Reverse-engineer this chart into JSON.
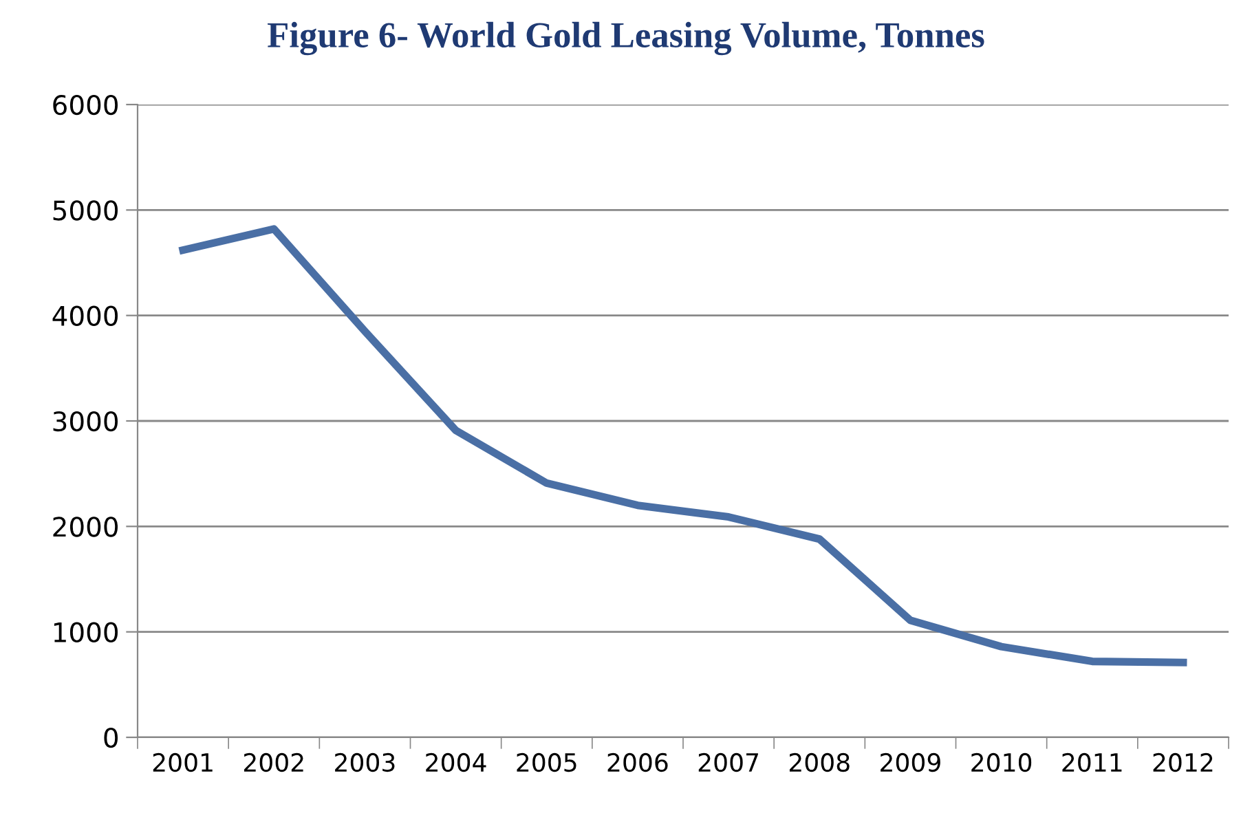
{
  "chart_data": {
    "type": "line",
    "title": "Figure 6- World Gold Leasing Volume, Tonnes",
    "categories": [
      "2001",
      "2002",
      "2003",
      "2004",
      "2005",
      "2006",
      "2007",
      "2008",
      "2009",
      "2010",
      "2011",
      "2012"
    ],
    "series": [
      {
        "color": "#4a6fa5",
        "values": [
          4620,
          4820,
          3850,
          2910,
          2410,
          2200,
          2090,
          1880,
          1110,
          860,
          720,
          710
        ]
      }
    ],
    "ylim": [
      0,
      6000
    ],
    "yticks": [
      0,
      1000,
      2000,
      3000,
      4000,
      5000,
      6000
    ],
    "grid": "y",
    "marker": "none",
    "line_style": "solid"
  }
}
